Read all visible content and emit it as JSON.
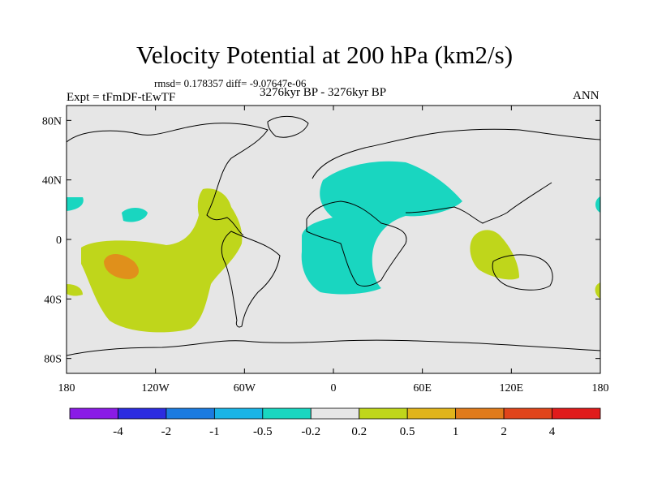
{
  "header": {
    "title": "Velocity Potential at 200 hPa (km2/s)",
    "stats": "rmsd= 0.178357 diff= -9.07647e-06",
    "experiment": "Expt = tFmDF-tEwTF",
    "period": "3276kyr BP - 3276kyr BP",
    "season": "ANN"
  },
  "axes": {
    "lat_labels": [
      {
        "text": "80N",
        "lat": 80
      },
      {
        "text": "40N",
        "lat": 40
      },
      {
        "text": "0",
        "lat": 0
      },
      {
        "text": "40S",
        "lat": -40
      },
      {
        "text": "80S",
        "lat": -80
      }
    ],
    "lon_labels": [
      {
        "text": "180",
        "lon": -180
      },
      {
        "text": "120W",
        "lon": -120
      },
      {
        "text": "60W",
        "lon": -60
      },
      {
        "text": "0",
        "lon": 0
      },
      {
        "text": "60E",
        "lon": 60
      },
      {
        "text": "120E",
        "lon": 120
      },
      {
        "text": "180",
        "lon": 180
      }
    ]
  },
  "colorbar": {
    "colors": [
      "#8a1be6",
      "#2c2ce0",
      "#1b7be0",
      "#19b4e6",
      "#19d6c0",
      "#e6e6e6",
      "#bfd61b",
      "#e0b41b",
      "#e07b1b",
      "#e0451b",
      "#e01b1b"
    ],
    "labels": [
      "-4",
      "-2",
      "-1",
      "-0.5",
      "-0.2",
      "0.2",
      "0.5",
      "1",
      "2",
      "4"
    ]
  },
  "colors": {
    "background": "#e6e6e6",
    "negative": "#19d6c0",
    "positive": "#bfd61b",
    "strong_positive": "#e0901b",
    "coast": "#000000"
  }
}
